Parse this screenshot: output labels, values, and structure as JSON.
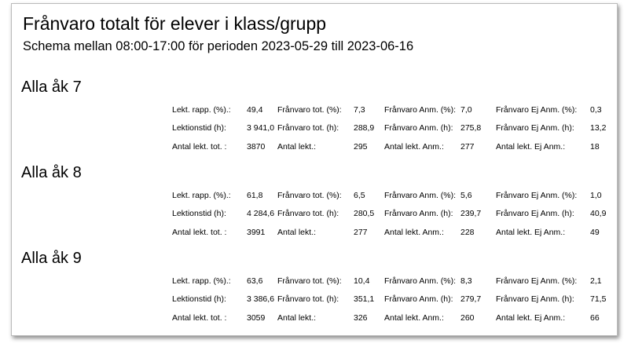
{
  "header": {
    "title": "Frånvaro totalt för elever i klass/grupp",
    "subtitle": "Schema mellan 08:00-17:00 för perioden 2023-05-29 till 2023-06-16"
  },
  "groups": [
    {
      "title": "Alla åk 7",
      "rows": [
        [
          "Lekt. rapp. (%).:",
          "49,4",
          "Frånvaro tot. (%):",
          "7,3",
          "Frånvaro Anm. (%):",
          "7,0",
          "Frånvaro Ej Anm. (%):",
          "0,3"
        ],
        [
          "Lektionstid (h):",
          "3 941,0",
          "Frånvaro tot. (h):",
          "288,9",
          "Frånvaro Anm. (h):",
          "275,8",
          "Frånvaro Ej Anm. (h):",
          "13,2"
        ],
        [
          "Antal lekt. tot. :",
          "3870",
          "Antal lekt.:",
          "295",
          "Antal lekt. Anm.:",
          "277",
          "Antal lekt. Ej Anm.:",
          "18"
        ]
      ]
    },
    {
      "title": "Alla åk 8",
      "rows": [
        [
          "Lekt. rapp. (%).:",
          "61,8",
          "Frånvaro tot. (%):",
          "6,5",
          "Frånvaro Anm. (%):",
          "5,6",
          "Frånvaro Ej Anm. (%):",
          "1,0"
        ],
        [
          "Lektionstid (h):",
          "4 284,6",
          "Frånvaro tot. (h):",
          "280,5",
          "Frånvaro Anm. (h):",
          "239,7",
          "Frånvaro Ej Anm. (h):",
          "40,9"
        ],
        [
          "Antal lekt. tot. :",
          "3991",
          "Antal lekt.:",
          "277",
          "Antal lekt. Anm.:",
          "228",
          "Antal lekt. Ej Anm.:",
          "49"
        ]
      ]
    },
    {
      "title": "Alla åk 9",
      "rows": [
        [
          "Lekt. rapp. (%).:",
          "63,6",
          "Frånvaro tot. (%):",
          "10,4",
          "Frånvaro Anm. (%):",
          "8,3",
          "Frånvaro Ej Anm. (%):",
          "2,1"
        ],
        [
          "Lektionstid (h):",
          "3 386,6",
          "Frånvaro tot. (h):",
          "351,1",
          "Frånvaro Anm. (h):",
          "279,7",
          "Frånvaro Ej Anm. (h):",
          "71,5"
        ],
        [
          "Antal lekt. tot. :",
          "3059",
          "Antal lekt.:",
          "326",
          "Antal lekt. Anm.:",
          "260",
          "Antal lekt. Ej Anm.:",
          "66"
        ]
      ]
    }
  ]
}
